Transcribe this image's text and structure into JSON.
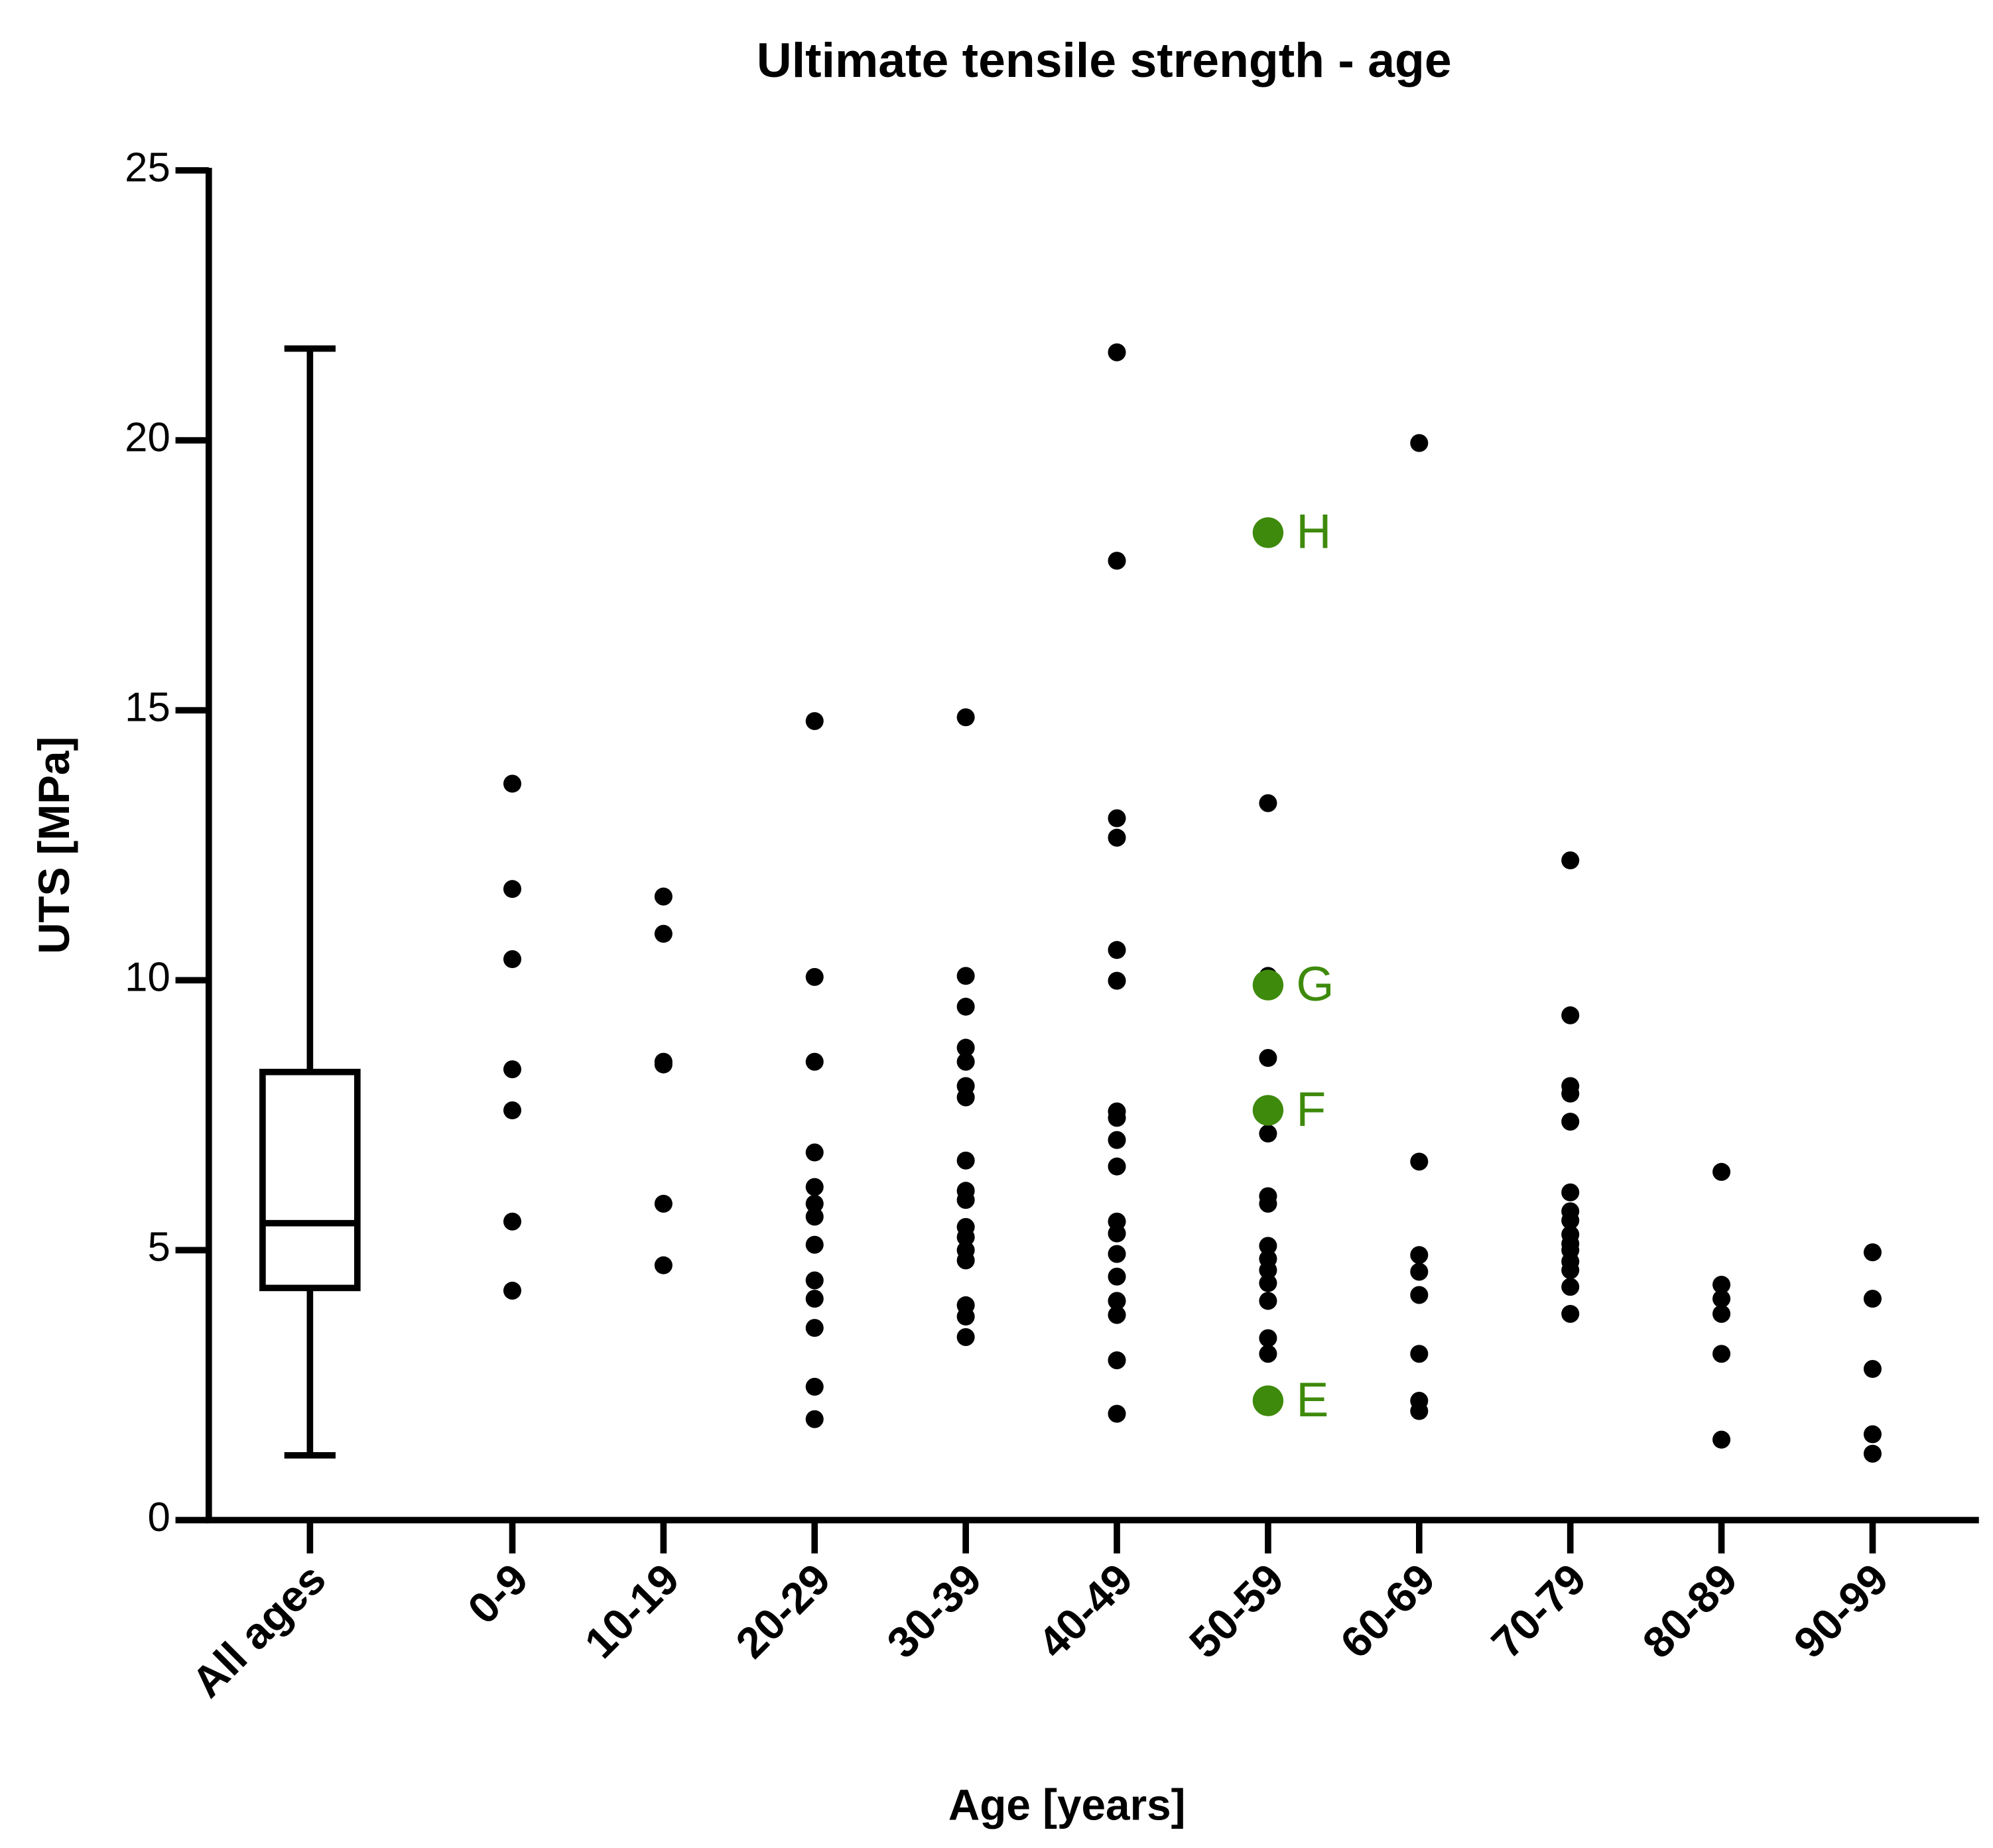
{
  "chart_data": {
    "type": "strip",
    "title": "Ultimate tensile strength - age",
    "x_label": "Age [years]",
    "y_label": "UTS [MPa]",
    "ylim": [
      0,
      25
    ],
    "yticks": [
      0,
      5,
      10,
      15,
      20,
      25
    ],
    "color": "#000000",
    "groups": [
      {
        "label": "All ages",
        "box": {
          "min": 1.2,
          "q1": 4.3,
          "median": 5.5,
          "q3": 8.3,
          "max": 21.7
        }
      },
      {
        "label": "0-9",
        "values": [
          13.64,
          11.69,
          10.39,
          8.35,
          7.59,
          5.53,
          4.25
        ]
      },
      {
        "label": "10-19",
        "values": [
          11.55,
          10.86,
          8.49,
          8.44,
          5.86,
          4.72
        ]
      },
      {
        "label": "20-29",
        "values": [
          14.8,
          10.06,
          8.49,
          6.81,
          6.17,
          5.86,
          5.62,
          5.1,
          4.44,
          4.1,
          3.56,
          2.47,
          1.87
        ]
      },
      {
        "label": "30-39",
        "values": [
          14.87,
          10.08,
          9.51,
          8.75,
          8.49,
          8.04,
          7.83,
          6.66,
          6.1,
          5.93,
          5.43,
          5.24,
          5.0,
          4.81,
          3.98,
          3.77,
          3.39
        ]
      },
      {
        "label": "40-49",
        "values": [
          21.63,
          17.77,
          13.0,
          12.64,
          10.56,
          9.99,
          7.57,
          7.45,
          7.04,
          6.55,
          5.53,
          5.31,
          4.93,
          4.51,
          4.06,
          3.8,
          2.96,
          1.97
        ]
      },
      {
        "label": "50-59",
        "values": [
          13.28,
          10.08,
          8.56,
          7.16,
          6.0,
          5.86,
          5.08,
          4.84,
          4.63,
          4.39,
          4.06,
          3.37,
          3.08
        ],
        "highlight_color": "#3e8a0c",
        "highlights": [
          {
            "label": "H",
            "value": 18.29
          },
          {
            "label": "G",
            "value": 9.91
          },
          {
            "label": "F",
            "value": 7.59
          },
          {
            "label": "E",
            "value": 2.21
          }
        ]
      },
      {
        "label": "60-69",
        "values": [
          19.95,
          6.64,
          4.91,
          4.6,
          4.17,
          3.08,
          2.21,
          2.02
        ]
      },
      {
        "label": "70-79",
        "values": [
          12.22,
          9.35,
          8.04,
          7.9,
          7.38,
          6.07,
          5.72,
          5.55,
          5.29,
          5.12,
          5.0,
          4.79,
          4.63,
          4.32,
          3.82
        ]
      },
      {
        "label": "80-89",
        "values": [
          6.45,
          4.36,
          4.1,
          3.82,
          3.08,
          1.49
        ]
      },
      {
        "label": "90-99",
        "values": [
          4.96,
          4.1,
          2.8,
          1.59,
          1.23
        ]
      }
    ]
  }
}
